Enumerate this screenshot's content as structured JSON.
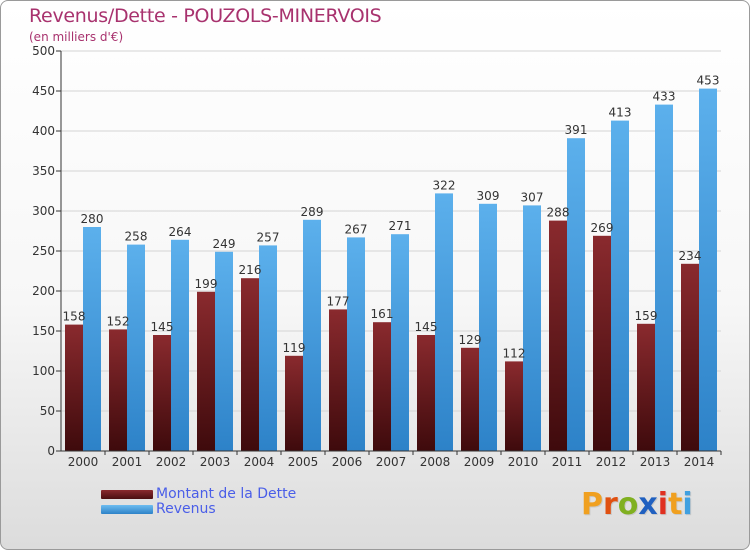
{
  "title": "Revenus/Dette - POUZOLS-MINERVOIS",
  "subtitle": "(en milliers d'€)",
  "legend": [
    {
      "label": "Montant de la Dette",
      "color": "#7a1f22"
    },
    {
      "label": "Revenus",
      "color": "#4fa6e6"
    }
  ],
  "logo": {
    "letters": [
      "P",
      "r",
      "o",
      "x",
      "i",
      "t",
      "i"
    ],
    "colors": [
      "#f0a020",
      "#e05010",
      "#80b020",
      "#2060c0",
      "#e03020",
      "#f0a020",
      "#40a0e0"
    ]
  },
  "chart_data": {
    "type": "bar",
    "categories": [
      "2000",
      "2001",
      "2002",
      "2003",
      "2004",
      "2005",
      "2006",
      "2007",
      "2008",
      "2009",
      "2010",
      "2011",
      "2012",
      "2013",
      "2014"
    ],
    "series": [
      {
        "name": "Montant de la Dette",
        "color": "#7a1f22",
        "values": [
          158,
          152,
          145,
          199,
          216,
          119,
          177,
          161,
          145,
          129,
          112,
          288,
          269,
          159,
          234
        ]
      },
      {
        "name": "Revenus",
        "color": "#4fa6e6",
        "values": [
          280,
          258,
          264,
          249,
          257,
          289,
          267,
          271,
          322,
          309,
          307,
          391,
          413,
          433,
          453
        ]
      }
    ],
    "data_labels": {
      "Montant de la Dette": [
        "158",
        "152",
        "145",
        "199",
        "216",
        "119",
        "177",
        "161",
        "145",
        "129",
        "112",
        "288",
        "269",
        "159",
        "234"
      ],
      "Revenus": [
        "280",
        "258",
        "264",
        "249",
        "257",
        "289",
        "267",
        "271",
        "322",
        "309",
        "307",
        "391",
        "413",
        "433",
        "453"
      ]
    },
    "yticks": [
      "0",
      "50",
      "100",
      "150",
      "200",
      "250",
      "300",
      "350",
      "400",
      "450",
      "500"
    ],
    "ylim": [
      0,
      500
    ],
    "grid": true,
    "legend_position": "bottom-left"
  }
}
